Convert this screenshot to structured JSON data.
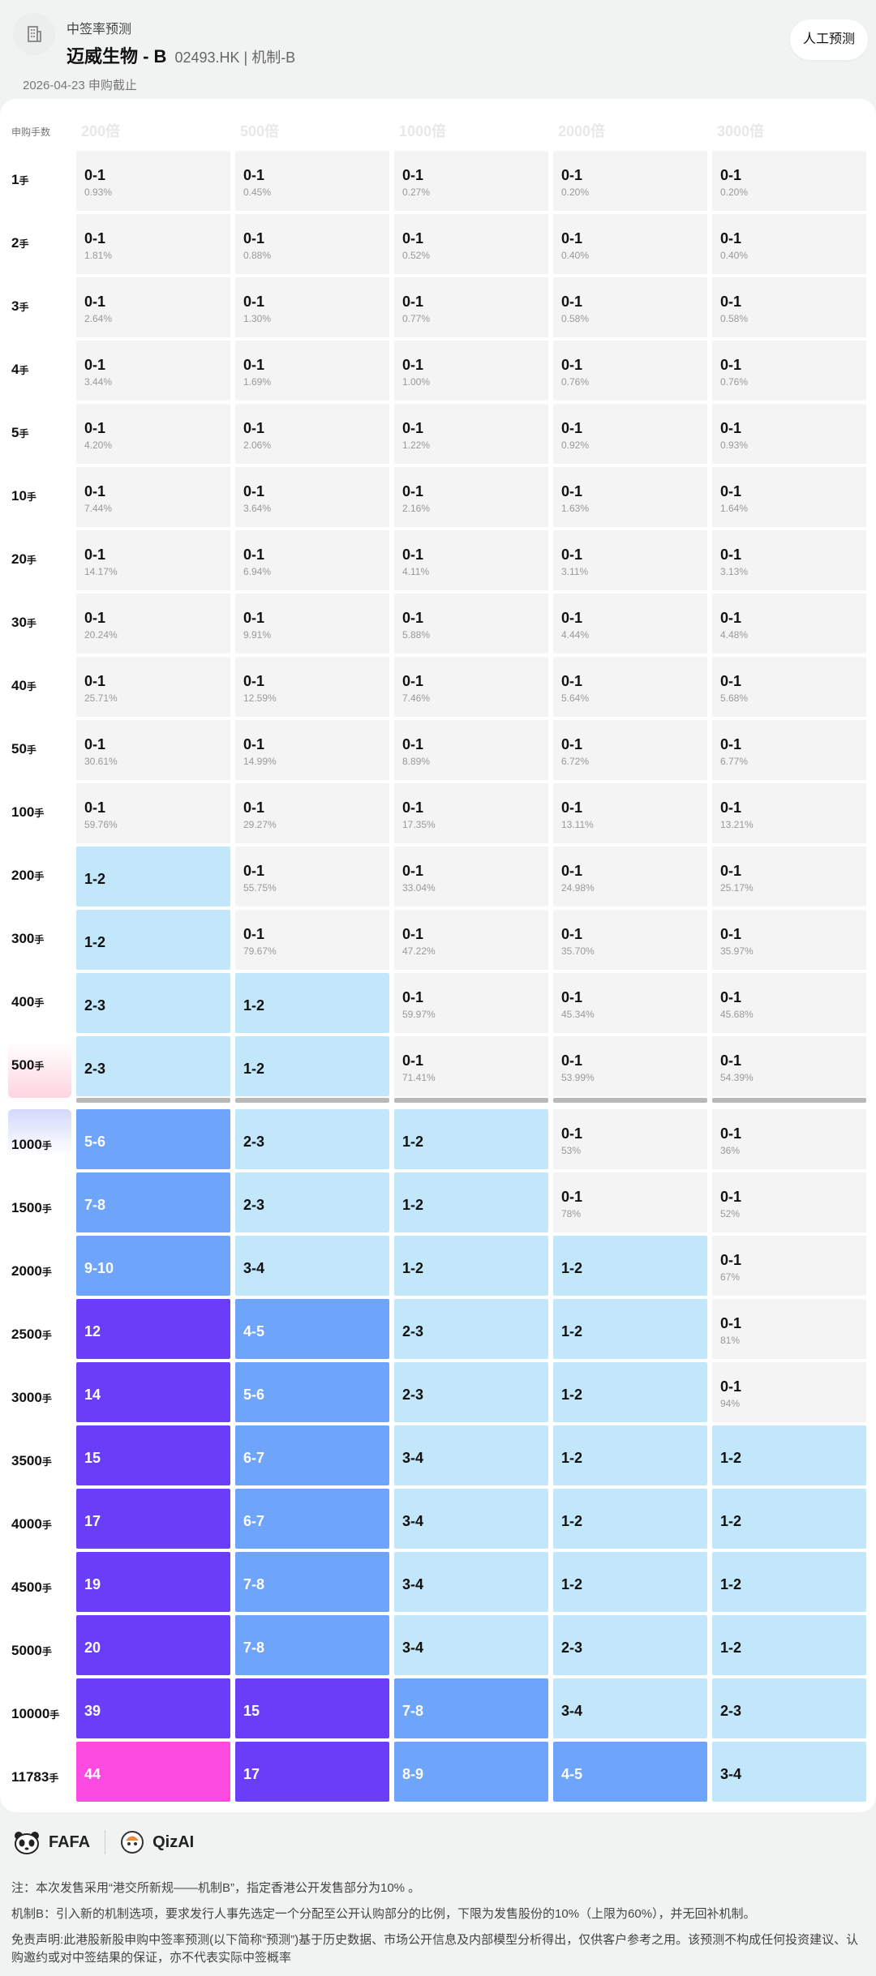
{
  "header": {
    "app_name": "中签率预测",
    "stock_name": "迈威生物 - B",
    "stock_code": "02493.HK | 机制-B",
    "manual_button": "人工预测",
    "deadline": "2026-04-23 申购截止"
  },
  "table": {
    "first_header": "申购手数",
    "columns": [
      "200倍",
      "500倍",
      "1000倍",
      "2000倍",
      "3000倍"
    ],
    "unit": "手",
    "rows": [
      {
        "lots": "1",
        "cells": [
          [
            "0-1",
            "0.93%",
            0
          ],
          [
            "0-1",
            "0.45%",
            0
          ],
          [
            "0-1",
            "0.27%",
            0
          ],
          [
            "0-1",
            "0.20%",
            0
          ],
          [
            "0-1",
            "0.20%",
            0
          ]
        ]
      },
      {
        "lots": "2",
        "cells": [
          [
            "0-1",
            "1.81%",
            0
          ],
          [
            "0-1",
            "0.88%",
            0
          ],
          [
            "0-1",
            "0.52%",
            0
          ],
          [
            "0-1",
            "0.40%",
            0
          ],
          [
            "0-1",
            "0.40%",
            0
          ]
        ]
      },
      {
        "lots": "3",
        "cells": [
          [
            "0-1",
            "2.64%",
            0
          ],
          [
            "0-1",
            "1.30%",
            0
          ],
          [
            "0-1",
            "0.77%",
            0
          ],
          [
            "0-1",
            "0.58%",
            0
          ],
          [
            "0-1",
            "0.58%",
            0
          ]
        ]
      },
      {
        "lots": "4",
        "cells": [
          [
            "0-1",
            "3.44%",
            0
          ],
          [
            "0-1",
            "1.69%",
            0
          ],
          [
            "0-1",
            "1.00%",
            0
          ],
          [
            "0-1",
            "0.76%",
            0
          ],
          [
            "0-1",
            "0.76%",
            0
          ]
        ]
      },
      {
        "lots": "5",
        "cells": [
          [
            "0-1",
            "4.20%",
            0
          ],
          [
            "0-1",
            "2.06%",
            0
          ],
          [
            "0-1",
            "1.22%",
            0
          ],
          [
            "0-1",
            "0.92%",
            0
          ],
          [
            "0-1",
            "0.93%",
            0
          ]
        ]
      },
      {
        "lots": "10",
        "cells": [
          [
            "0-1",
            "7.44%",
            0
          ],
          [
            "0-1",
            "3.64%",
            0
          ],
          [
            "0-1",
            "2.16%",
            0
          ],
          [
            "0-1",
            "1.63%",
            0
          ],
          [
            "0-1",
            "1.64%",
            0
          ]
        ]
      },
      {
        "lots": "20",
        "cells": [
          [
            "0-1",
            "14.17%",
            0
          ],
          [
            "0-1",
            "6.94%",
            0
          ],
          [
            "0-1",
            "4.11%",
            0
          ],
          [
            "0-1",
            "3.11%",
            0
          ],
          [
            "0-1",
            "3.13%",
            0
          ]
        ]
      },
      {
        "lots": "30",
        "cells": [
          [
            "0-1",
            "20.24%",
            0
          ],
          [
            "0-1",
            "9.91%",
            0
          ],
          [
            "0-1",
            "5.88%",
            0
          ],
          [
            "0-1",
            "4.44%",
            0
          ],
          [
            "0-1",
            "4.48%",
            0
          ]
        ]
      },
      {
        "lots": "40",
        "cells": [
          [
            "0-1",
            "25.71%",
            0
          ],
          [
            "0-1",
            "12.59%",
            0
          ],
          [
            "0-1",
            "7.46%",
            0
          ],
          [
            "0-1",
            "5.64%",
            0
          ],
          [
            "0-1",
            "5.68%",
            0
          ]
        ]
      },
      {
        "lots": "50",
        "cells": [
          [
            "0-1",
            "30.61%",
            0
          ],
          [
            "0-1",
            "14.99%",
            0
          ],
          [
            "0-1",
            "8.89%",
            0
          ],
          [
            "0-1",
            "6.72%",
            0
          ],
          [
            "0-1",
            "6.77%",
            0
          ]
        ]
      },
      {
        "lots": "100",
        "cells": [
          [
            "0-1",
            "59.76%",
            0
          ],
          [
            "0-1",
            "29.27%",
            0
          ],
          [
            "0-1",
            "17.35%",
            0
          ],
          [
            "0-1",
            "13.11%",
            0
          ],
          [
            "0-1",
            "13.21%",
            0
          ]
        ]
      },
      {
        "lots": "200",
        "cells": [
          [
            "1-2",
            "",
            1
          ],
          [
            "0-1",
            "55.75%",
            0
          ],
          [
            "0-1",
            "33.04%",
            0
          ],
          [
            "0-1",
            "24.98%",
            0
          ],
          [
            "0-1",
            "25.17%",
            0
          ]
        ]
      },
      {
        "lots": "300",
        "cells": [
          [
            "1-2",
            "",
            1
          ],
          [
            "0-1",
            "79.67%",
            0
          ],
          [
            "0-1",
            "47.22%",
            0
          ],
          [
            "0-1",
            "35.70%",
            0
          ],
          [
            "0-1",
            "35.97%",
            0
          ]
        ]
      },
      {
        "lots": "400",
        "cells": [
          [
            "2-3",
            "",
            1
          ],
          [
            "1-2",
            "",
            1
          ],
          [
            "0-1",
            "59.97%",
            0
          ],
          [
            "0-1",
            "45.34%",
            0
          ],
          [
            "0-1",
            "45.68%",
            0
          ]
        ]
      },
      {
        "lots": "500",
        "cells": [
          [
            "2-3",
            "",
            1
          ],
          [
            "1-2",
            "",
            1
          ],
          [
            "0-1",
            "71.41%",
            0
          ],
          [
            "0-1",
            "53.99%",
            0
          ],
          [
            "0-1",
            "54.39%",
            0
          ]
        ]
      },
      {
        "lots": "1000",
        "cells": [
          [
            "5-6",
            "",
            2
          ],
          [
            "2-3",
            "",
            1
          ],
          [
            "1-2",
            "",
            1
          ],
          [
            "0-1",
            "53%",
            0
          ],
          [
            "0-1",
            "36%",
            0
          ]
        ]
      },
      {
        "lots": "1500",
        "cells": [
          [
            "7-8",
            "",
            2
          ],
          [
            "2-3",
            "",
            1
          ],
          [
            "1-2",
            "",
            1
          ],
          [
            "0-1",
            "78%",
            0
          ],
          [
            "0-1",
            "52%",
            0
          ]
        ]
      },
      {
        "lots": "2000",
        "cells": [
          [
            "9-10",
            "",
            2
          ],
          [
            "3-4",
            "",
            1
          ],
          [
            "1-2",
            "",
            1
          ],
          [
            "1-2",
            "",
            1
          ],
          [
            "0-1",
            "67%",
            0
          ]
        ]
      },
      {
        "lots": "2500",
        "cells": [
          [
            "12",
            "",
            3
          ],
          [
            "4-5",
            "",
            2
          ],
          [
            "2-3",
            "",
            1
          ],
          [
            "1-2",
            "",
            1
          ],
          [
            "0-1",
            "81%",
            0
          ]
        ]
      },
      {
        "lots": "3000",
        "cells": [
          [
            "14",
            "",
            3
          ],
          [
            "5-6",
            "",
            2
          ],
          [
            "2-3",
            "",
            1
          ],
          [
            "1-2",
            "",
            1
          ],
          [
            "0-1",
            "94%",
            0
          ]
        ]
      },
      {
        "lots": "3500",
        "cells": [
          [
            "15",
            "",
            3
          ],
          [
            "6-7",
            "",
            2
          ],
          [
            "3-4",
            "",
            1
          ],
          [
            "1-2",
            "",
            1
          ],
          [
            "1-2",
            "",
            1
          ]
        ]
      },
      {
        "lots": "4000",
        "cells": [
          [
            "17",
            "",
            3
          ],
          [
            "6-7",
            "",
            2
          ],
          [
            "3-4",
            "",
            1
          ],
          [
            "1-2",
            "",
            1
          ],
          [
            "1-2",
            "",
            1
          ]
        ]
      },
      {
        "lots": "4500",
        "cells": [
          [
            "19",
            "",
            3
          ],
          [
            "7-8",
            "",
            2
          ],
          [
            "3-4",
            "",
            1
          ],
          [
            "1-2",
            "",
            1
          ],
          [
            "1-2",
            "",
            1
          ]
        ]
      },
      {
        "lots": "5000",
        "cells": [
          [
            "20",
            "",
            3
          ],
          [
            "7-8",
            "",
            2
          ],
          [
            "3-4",
            "",
            1
          ],
          [
            "2-3",
            "",
            1
          ],
          [
            "1-2",
            "",
            1
          ]
        ]
      },
      {
        "lots": "10000",
        "cells": [
          [
            "39",
            "",
            3
          ],
          [
            "15",
            "",
            3
          ],
          [
            "7-8",
            "",
            2
          ],
          [
            "3-4",
            "",
            1
          ],
          [
            "2-3",
            "",
            1
          ]
        ]
      },
      {
        "lots": "11783",
        "cells": [
          [
            "44",
            "",
            4
          ],
          [
            "17",
            "",
            3
          ],
          [
            "8-9",
            "",
            2
          ],
          [
            "4-5",
            "",
            2
          ],
          [
            "3-4",
            "",
            1
          ]
        ]
      }
    ]
  },
  "colors": {
    "level0": "#f4f4f4",
    "level1": "#c2e7fb",
    "level2": "#6ea4fa",
    "level3": "#6a3ef9",
    "level4": "#fd4be2"
  },
  "footer": {
    "logo1": "FAFA",
    "logo1_icon": "panda-icon",
    "logo2": "QizAI",
    "logo2_icon": "mascot-icon",
    "note1": "注：本次发售采用“港交所新规——机制B”，指定香港公开发售部分为10% 。",
    "note2": "机制B：引入新的机制选项，要求发行人事先选定一个分配至公开认购部分的比例，下限为发售股份的10%（上限为60%），并无回补机制。",
    "disclaimer": "免责声明:此港股新股申购中签率预测(以下简称“预测”)基于历史数据、市场公开信息及内部模型分析得出，仅供客户参考之用。该预测不构成任何投资建议、认购邀约或对中签结果的保证，亦不代表实际中签概率"
  }
}
